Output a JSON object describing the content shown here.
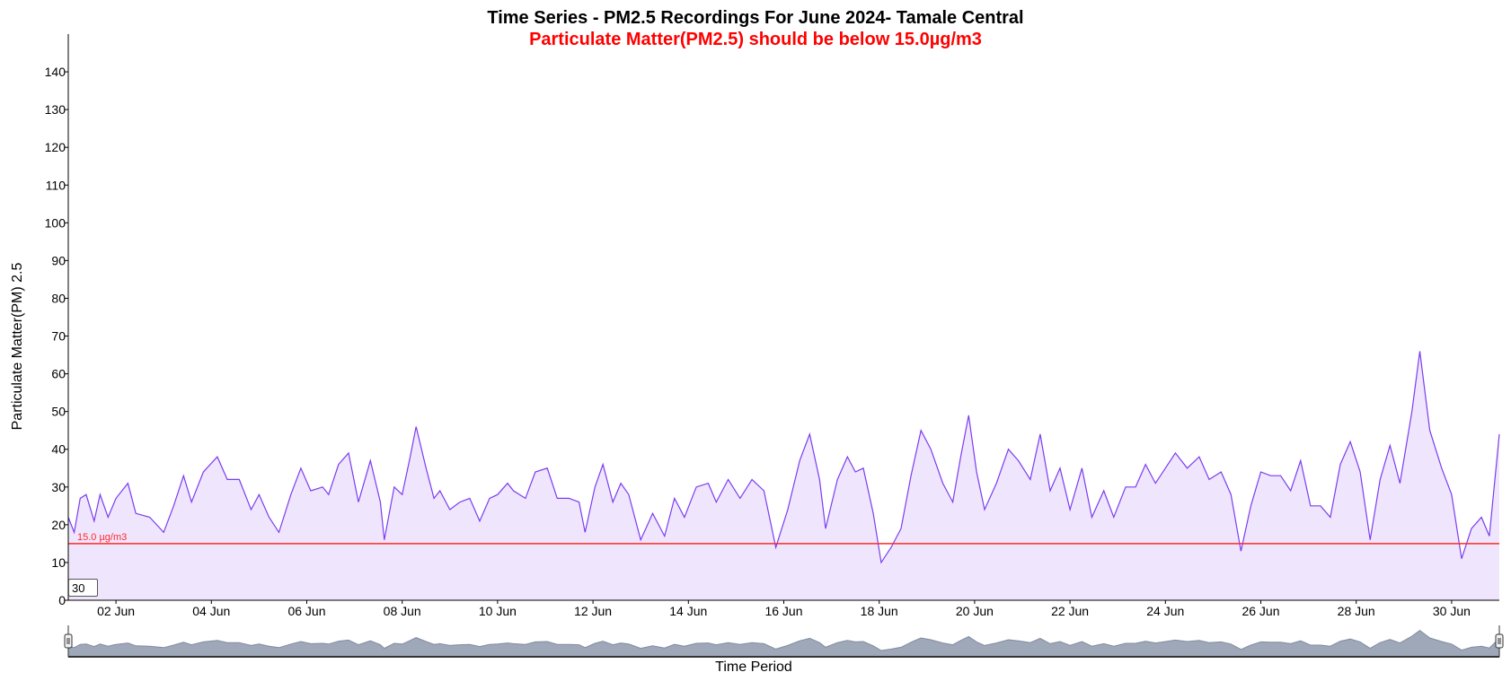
{
  "chart_data": {
    "type": "area",
    "title": "Time Series - PM2.5 Recordings For June 2024- Tamale Central",
    "subtitle": "Particulate Matter(PM2.5) should be below 15.0µg/m3",
    "xlabel": "Time Period",
    "ylabel": "Particulate Matter(PM) 2.5",
    "x_range": [
      "2024-06-01",
      "2024-07-01"
    ],
    "ylim": [
      0,
      150
    ],
    "y_ticks": [
      0,
      10,
      20,
      30,
      40,
      50,
      60,
      70,
      80,
      90,
      100,
      110,
      120,
      130,
      140
    ],
    "x_ticks": [
      {
        "date": "2024-06-02",
        "label": "02 Jun"
      },
      {
        "date": "2024-06-04",
        "label": "04 Jun"
      },
      {
        "date": "2024-06-06",
        "label": "06 Jun"
      },
      {
        "date": "2024-06-08",
        "label": "08 Jun"
      },
      {
        "date": "2024-06-10",
        "label": "10 Jun"
      },
      {
        "date": "2024-06-12",
        "label": "12 Jun"
      },
      {
        "date": "2024-06-14",
        "label": "14 Jun"
      },
      {
        "date": "2024-06-16",
        "label": "16 Jun"
      },
      {
        "date": "2024-06-18",
        "label": "18 Jun"
      },
      {
        "date": "2024-06-20",
        "label": "20 Jun"
      },
      {
        "date": "2024-06-22",
        "label": "22 Jun"
      },
      {
        "date": "2024-06-24",
        "label": "24 Jun"
      },
      {
        "date": "2024-06-26",
        "label": "26 Jun"
      },
      {
        "date": "2024-06-28",
        "label": "28 Jun"
      },
      {
        "date": "2024-06-30",
        "label": "30 Jun"
      }
    ],
    "threshold": {
      "value": 15.0,
      "label": "15.0 µg/m3",
      "color": "#ff2a2a"
    },
    "rolling_window": "30",
    "grid": false,
    "series": [
      {
        "color": "#7b3cf0",
        "fill": "#efe6fd",
        "points": [
          [
            "2024-06-01 00:00",
            22
          ],
          [
            "2024-06-01 03:00",
            18
          ],
          [
            "2024-06-01 06:00",
            27
          ],
          [
            "2024-06-01 09:00",
            28
          ],
          [
            "2024-06-01 13:00",
            21
          ],
          [
            "2024-06-01 16:00",
            28
          ],
          [
            "2024-06-01 20:00",
            22
          ],
          [
            "2024-06-02 00:00",
            27
          ],
          [
            "2024-06-02 06:00",
            31
          ],
          [
            "2024-06-02 10:00",
            23
          ],
          [
            "2024-06-02 17:00",
            22
          ],
          [
            "2024-06-03 00:00",
            18
          ],
          [
            "2024-06-03 05:00",
            25
          ],
          [
            "2024-06-03 10:00",
            33
          ],
          [
            "2024-06-03 14:00",
            26
          ],
          [
            "2024-06-03 20:00",
            34
          ],
          [
            "2024-06-04 03:00",
            38
          ],
          [
            "2024-06-04 08:00",
            32
          ],
          [
            "2024-06-04 14:00",
            32
          ],
          [
            "2024-06-04 20:00",
            24
          ],
          [
            "2024-06-05 00:00",
            28
          ],
          [
            "2024-06-05 05:00",
            22
          ],
          [
            "2024-06-05 10:00",
            18
          ],
          [
            "2024-06-05 16:00",
            28
          ],
          [
            "2024-06-05 21:00",
            35
          ],
          [
            "2024-06-06 02:00",
            29
          ],
          [
            "2024-06-06 08:00",
            30
          ],
          [
            "2024-06-06 11:00",
            28
          ],
          [
            "2024-06-06 16:00",
            36
          ],
          [
            "2024-06-06 21:00",
            39
          ],
          [
            "2024-06-07 02:00",
            26
          ],
          [
            "2024-06-07 08:00",
            37
          ],
          [
            "2024-06-07 13:00",
            26
          ],
          [
            "2024-06-07 15:00",
            16
          ],
          [
            "2024-06-07 20:00",
            30
          ],
          [
            "2024-06-08 00:00",
            28
          ],
          [
            "2024-06-08 04:00",
            38
          ],
          [
            "2024-06-08 07:00",
            46
          ],
          [
            "2024-06-08 12:00",
            35
          ],
          [
            "2024-06-08 16:00",
            27
          ],
          [
            "2024-06-08 19:00",
            29
          ],
          [
            "2024-06-09 00:00",
            24
          ],
          [
            "2024-06-09 05:00",
            26
          ],
          [
            "2024-06-09 10:00",
            27
          ],
          [
            "2024-06-09 15:00",
            21
          ],
          [
            "2024-06-09 20:00",
            27
          ],
          [
            "2024-06-10 00:00",
            28
          ],
          [
            "2024-06-10 05:00",
            31
          ],
          [
            "2024-06-10 08:00",
            29
          ],
          [
            "2024-06-10 14:00",
            27
          ],
          [
            "2024-06-10 19:00",
            34
          ],
          [
            "2024-06-11 01:00",
            35
          ],
          [
            "2024-06-11 06:00",
            27
          ],
          [
            "2024-06-11 12:00",
            27
          ],
          [
            "2024-06-11 17:00",
            26
          ],
          [
            "2024-06-11 20:00",
            18
          ],
          [
            "2024-06-12 01:00",
            30
          ],
          [
            "2024-06-12 05:00",
            36
          ],
          [
            "2024-06-12 10:00",
            26
          ],
          [
            "2024-06-12 14:00",
            31
          ],
          [
            "2024-06-12 18:00",
            28
          ],
          [
            "2024-06-13 00:00",
            16
          ],
          [
            "2024-06-13 06:00",
            23
          ],
          [
            "2024-06-13 12:00",
            17
          ],
          [
            "2024-06-13 17:00",
            27
          ],
          [
            "2024-06-13 22:00",
            22
          ],
          [
            "2024-06-14 04:00",
            30
          ],
          [
            "2024-06-14 10:00",
            31
          ],
          [
            "2024-06-14 14:00",
            26
          ],
          [
            "2024-06-14 20:00",
            32
          ],
          [
            "2024-06-15 02:00",
            27
          ],
          [
            "2024-06-15 08:00",
            32
          ],
          [
            "2024-06-15 14:00",
            29
          ],
          [
            "2024-06-15 20:00",
            14
          ],
          [
            "2024-06-16 02:00",
            24
          ],
          [
            "2024-06-16 08:00",
            37
          ],
          [
            "2024-06-16 13:00",
            44
          ],
          [
            "2024-06-16 18:00",
            32
          ],
          [
            "2024-06-16 21:00",
            19
          ],
          [
            "2024-06-17 03:00",
            32
          ],
          [
            "2024-06-17 08:00",
            38
          ],
          [
            "2024-06-17 12:00",
            34
          ],
          [
            "2024-06-17 16:00",
            35
          ],
          [
            "2024-06-17 21:00",
            23
          ],
          [
            "2024-06-18 01:00",
            10
          ],
          [
            "2024-06-18 06:00",
            14
          ],
          [
            "2024-06-18 11:00",
            19
          ],
          [
            "2024-06-18 16:00",
            33
          ],
          [
            "2024-06-18 21:00",
            45
          ],
          [
            "2024-06-19 02:00",
            40
          ],
          [
            "2024-06-19 08:00",
            31
          ],
          [
            "2024-06-19 13:00",
            26
          ],
          [
            "2024-06-19 17:00",
            38
          ],
          [
            "2024-06-19 21:00",
            49
          ],
          [
            "2024-06-20 01:00",
            34
          ],
          [
            "2024-06-20 05:00",
            24
          ],
          [
            "2024-06-20 11:00",
            31
          ],
          [
            "2024-06-20 17:00",
            40
          ],
          [
            "2024-06-20 22:00",
            37
          ],
          [
            "2024-06-21 04:00",
            32
          ],
          [
            "2024-06-21 09:00",
            44
          ],
          [
            "2024-06-21 14:00",
            29
          ],
          [
            "2024-06-21 19:00",
            35
          ],
          [
            "2024-06-22 00:00",
            24
          ],
          [
            "2024-06-22 06:00",
            35
          ],
          [
            "2024-06-22 11:00",
            22
          ],
          [
            "2024-06-22 17:00",
            29
          ],
          [
            "2024-06-22 22:00",
            22
          ],
          [
            "2024-06-23 04:00",
            30
          ],
          [
            "2024-06-23 09:00",
            30
          ],
          [
            "2024-06-23 14:00",
            36
          ],
          [
            "2024-06-23 19:00",
            31
          ],
          [
            "2024-06-24 00:00",
            35
          ],
          [
            "2024-06-24 05:00",
            39
          ],
          [
            "2024-06-24 11:00",
            35
          ],
          [
            "2024-06-24 17:00",
            38
          ],
          [
            "2024-06-24 22:00",
            32
          ],
          [
            "2024-06-25 04:00",
            34
          ],
          [
            "2024-06-25 09:00",
            28
          ],
          [
            "2024-06-25 14:00",
            13
          ],
          [
            "2024-06-25 19:00",
            25
          ],
          [
            "2024-06-26 00:00",
            34
          ],
          [
            "2024-06-26 05:00",
            33
          ],
          [
            "2024-06-26 10:00",
            33
          ],
          [
            "2024-06-26 15:00",
            29
          ],
          [
            "2024-06-26 20:00",
            37
          ],
          [
            "2024-06-27 01:00",
            25
          ],
          [
            "2024-06-27 06:00",
            25
          ],
          [
            "2024-06-27 11:00",
            22
          ],
          [
            "2024-06-27 16:00",
            36
          ],
          [
            "2024-06-27 21:00",
            42
          ],
          [
            "2024-06-28 02:00",
            34
          ],
          [
            "2024-06-28 07:00",
            16
          ],
          [
            "2024-06-28 12:00",
            32
          ],
          [
            "2024-06-28 17:00",
            41
          ],
          [
            "2024-06-28 22:00",
            31
          ],
          [
            "2024-06-29 04:00",
            50
          ],
          [
            "2024-06-29 08:00",
            66
          ],
          [
            "2024-06-29 13:00",
            45
          ],
          [
            "2024-06-29 19:00",
            35
          ],
          [
            "2024-06-30 00:00",
            28
          ],
          [
            "2024-06-30 05:00",
            11
          ],
          [
            "2024-06-30 10:00",
            19
          ],
          [
            "2024-06-30 15:00",
            22
          ],
          [
            "2024-06-30 19:00",
            17
          ],
          [
            "2024-07-01 00:00",
            44
          ]
        ]
      }
    ]
  },
  "navigator_color": "#8e99ad"
}
